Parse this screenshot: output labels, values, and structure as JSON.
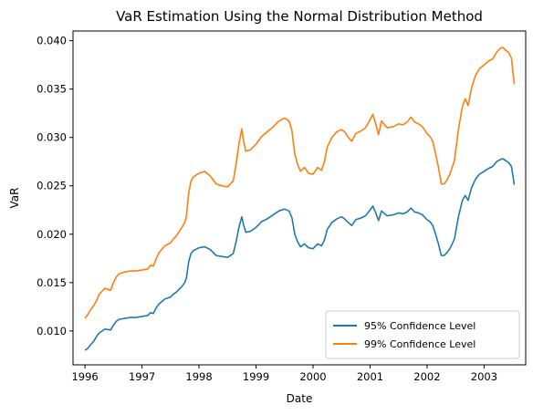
{
  "chart_data": {
    "type": "line",
    "title": "VaR Estimation Using the Normal Distribution Method",
    "xlabel": "Date",
    "ylabel": "VaR",
    "xlim": [
      1995.79,
      2003.73
    ],
    "ylim": [
      0.0065,
      0.041
    ],
    "x_ticks": [
      "1996",
      "1997",
      "1998",
      "1999",
      "2000",
      "2001",
      "2002",
      "2003"
    ],
    "y_ticks": [
      "0.010",
      "0.015",
      "0.020",
      "0.025",
      "0.030",
      "0.035",
      "0.040"
    ],
    "grid": false,
    "legend_position": "lower-right",
    "series": [
      {
        "name": "95% Confidence Level",
        "color": "#1f77b4",
        "points": [
          [
            1996.0,
            0.008
          ],
          [
            1996.05,
            0.0082
          ],
          [
            1996.1,
            0.0086
          ],
          [
            1996.15,
            0.0089
          ],
          [
            1996.2,
            0.0094
          ],
          [
            1996.25,
            0.0098
          ],
          [
            1996.3,
            0.01
          ],
          [
            1996.35,
            0.0102
          ],
          [
            1996.45,
            0.0101
          ],
          [
            1996.5,
            0.0106
          ],
          [
            1996.55,
            0.011
          ],
          [
            1996.6,
            0.0112
          ],
          [
            1996.7,
            0.0113
          ],
          [
            1996.8,
            0.0114
          ],
          [
            1996.9,
            0.0114
          ],
          [
            1997.0,
            0.0115
          ],
          [
            1997.1,
            0.0116
          ],
          [
            1997.15,
            0.0119
          ],
          [
            1997.2,
            0.0118
          ],
          [
            1997.25,
            0.0124
          ],
          [
            1997.3,
            0.0128
          ],
          [
            1997.4,
            0.0133
          ],
          [
            1997.5,
            0.0135
          ],
          [
            1997.55,
            0.0138
          ],
          [
            1997.6,
            0.014
          ],
          [
            1997.7,
            0.0146
          ],
          [
            1997.75,
            0.015
          ],
          [
            1997.78,
            0.0155
          ],
          [
            1997.82,
            0.0172
          ],
          [
            1997.86,
            0.018
          ],
          [
            1997.9,
            0.0183
          ],
          [
            1998.0,
            0.0186
          ],
          [
            1998.1,
            0.0187
          ],
          [
            1998.2,
            0.0184
          ],
          [
            1998.3,
            0.0178
          ],
          [
            1998.4,
            0.0177
          ],
          [
            1998.5,
            0.0176
          ],
          [
            1998.6,
            0.018
          ],
          [
            1998.65,
            0.0192
          ],
          [
            1998.7,
            0.0207
          ],
          [
            1998.75,
            0.0218
          ],
          [
            1998.78,
            0.021
          ],
          [
            1998.82,
            0.0202
          ],
          [
            1998.9,
            0.0203
          ],
          [
            1999.0,
            0.0207
          ],
          [
            1999.1,
            0.0213
          ],
          [
            1999.2,
            0.0216
          ],
          [
            1999.3,
            0.022
          ],
          [
            1999.4,
            0.0224
          ],
          [
            1999.5,
            0.0226
          ],
          [
            1999.58,
            0.0224
          ],
          [
            1999.63,
            0.0217
          ],
          [
            1999.68,
            0.02
          ],
          [
            1999.73,
            0.0192
          ],
          [
            1999.78,
            0.0187
          ],
          [
            1999.85,
            0.019
          ],
          [
            1999.92,
            0.0186
          ],
          [
            2000.0,
            0.0185
          ],
          [
            2000.08,
            0.019
          ],
          [
            2000.15,
            0.0188
          ],
          [
            2000.2,
            0.0194
          ],
          [
            2000.25,
            0.0205
          ],
          [
            2000.33,
            0.0212
          ],
          [
            2000.42,
            0.0216
          ],
          [
            2000.5,
            0.0218
          ],
          [
            2000.55,
            0.0216
          ],
          [
            2000.62,
            0.0212
          ],
          [
            2000.68,
            0.0209
          ],
          [
            2000.75,
            0.0215
          ],
          [
            2000.85,
            0.0217
          ],
          [
            2000.92,
            0.0219
          ],
          [
            2001.0,
            0.0225
          ],
          [
            2001.05,
            0.0229
          ],
          [
            2001.1,
            0.0222
          ],
          [
            2001.15,
            0.0214
          ],
          [
            2001.2,
            0.0224
          ],
          [
            2001.3,
            0.0219
          ],
          [
            2001.4,
            0.022
          ],
          [
            2001.5,
            0.0222
          ],
          [
            2001.58,
            0.0221
          ],
          [
            2001.65,
            0.0223
          ],
          [
            2001.72,
            0.0227
          ],
          [
            2001.78,
            0.0223
          ],
          [
            2001.85,
            0.0222
          ],
          [
            2001.92,
            0.022
          ],
          [
            2002.0,
            0.0215
          ],
          [
            2002.05,
            0.0213
          ],
          [
            2002.1,
            0.0209
          ],
          [
            2002.15,
            0.02
          ],
          [
            2002.2,
            0.019
          ],
          [
            2002.25,
            0.0178
          ],
          [
            2002.3,
            0.0178
          ],
          [
            2002.35,
            0.0181
          ],
          [
            2002.4,
            0.0185
          ],
          [
            2002.48,
            0.0195
          ],
          [
            2002.55,
            0.0218
          ],
          [
            2002.62,
            0.0235
          ],
          [
            2002.67,
            0.024
          ],
          [
            2002.72,
            0.0235
          ],
          [
            2002.78,
            0.0248
          ],
          [
            2002.85,
            0.0257
          ],
          [
            2002.92,
            0.0262
          ],
          [
            2003.0,
            0.0265
          ],
          [
            2003.08,
            0.0268
          ],
          [
            2003.15,
            0.027
          ],
          [
            2003.22,
            0.0275
          ],
          [
            2003.28,
            0.0277
          ],
          [
            2003.33,
            0.0278
          ],
          [
            2003.38,
            0.0276
          ],
          [
            2003.43,
            0.0274
          ],
          [
            2003.48,
            0.027
          ],
          [
            2003.53,
            0.0251
          ]
        ]
      },
      {
        "name": "99% Confidence Level",
        "color": "#ff7f0e",
        "points": [
          [
            1996.0,
            0.0113
          ],
          [
            1996.05,
            0.0117
          ],
          [
            1996.1,
            0.0122
          ],
          [
            1996.15,
            0.0126
          ],
          [
            1996.2,
            0.0131
          ],
          [
            1996.25,
            0.0138
          ],
          [
            1996.3,
            0.0141
          ],
          [
            1996.35,
            0.0144
          ],
          [
            1996.45,
            0.0142
          ],
          [
            1996.5,
            0.015
          ],
          [
            1996.55,
            0.0156
          ],
          [
            1996.6,
            0.0159
          ],
          [
            1996.7,
            0.0161
          ],
          [
            1996.8,
            0.0162
          ],
          [
            1996.9,
            0.0162
          ],
          [
            1997.0,
            0.0163
          ],
          [
            1997.1,
            0.0164
          ],
          [
            1997.15,
            0.0168
          ],
          [
            1997.2,
            0.0167
          ],
          [
            1997.25,
            0.0175
          ],
          [
            1997.3,
            0.0181
          ],
          [
            1997.4,
            0.0188
          ],
          [
            1997.5,
            0.0191
          ],
          [
            1997.55,
            0.0195
          ],
          [
            1997.6,
            0.0198
          ],
          [
            1997.7,
            0.0207
          ],
          [
            1997.75,
            0.0212
          ],
          [
            1997.78,
            0.0219
          ],
          [
            1997.82,
            0.0243
          ],
          [
            1997.86,
            0.0255
          ],
          [
            1997.9,
            0.0259
          ],
          [
            1998.0,
            0.0263
          ],
          [
            1998.1,
            0.0265
          ],
          [
            1998.2,
            0.026
          ],
          [
            1998.3,
            0.0252
          ],
          [
            1998.4,
            0.025
          ],
          [
            1998.5,
            0.0249
          ],
          [
            1998.6,
            0.0255
          ],
          [
            1998.65,
            0.0272
          ],
          [
            1998.7,
            0.0293
          ],
          [
            1998.75,
            0.0309
          ],
          [
            1998.78,
            0.0297
          ],
          [
            1998.82,
            0.0286
          ],
          [
            1998.9,
            0.0287
          ],
          [
            1999.0,
            0.0293
          ],
          [
            1999.1,
            0.0301
          ],
          [
            1999.2,
            0.0306
          ],
          [
            1999.3,
            0.0311
          ],
          [
            1999.4,
            0.0317
          ],
          [
            1999.5,
            0.032
          ],
          [
            1999.58,
            0.0317
          ],
          [
            1999.63,
            0.0307
          ],
          [
            1999.68,
            0.0283
          ],
          [
            1999.73,
            0.0272
          ],
          [
            1999.78,
            0.0265
          ],
          [
            1999.85,
            0.0269
          ],
          [
            1999.92,
            0.0263
          ],
          [
            2000.0,
            0.0262
          ],
          [
            2000.08,
            0.0269
          ],
          [
            2000.15,
            0.0266
          ],
          [
            2000.2,
            0.0275
          ],
          [
            2000.25,
            0.029
          ],
          [
            2000.33,
            0.03
          ],
          [
            2000.42,
            0.0306
          ],
          [
            2000.5,
            0.0308
          ],
          [
            2000.55,
            0.0306
          ],
          [
            2000.62,
            0.03
          ],
          [
            2000.68,
            0.0296
          ],
          [
            2000.75,
            0.0304
          ],
          [
            2000.85,
            0.0307
          ],
          [
            2000.92,
            0.031
          ],
          [
            2001.0,
            0.0318
          ],
          [
            2001.05,
            0.0324
          ],
          [
            2001.1,
            0.0314
          ],
          [
            2001.15,
            0.0303
          ],
          [
            2001.2,
            0.0317
          ],
          [
            2001.3,
            0.031
          ],
          [
            2001.4,
            0.0311
          ],
          [
            2001.5,
            0.0314
          ],
          [
            2001.58,
            0.0313
          ],
          [
            2001.65,
            0.0316
          ],
          [
            2001.72,
            0.0321
          ],
          [
            2001.78,
            0.0316
          ],
          [
            2001.85,
            0.0314
          ],
          [
            2001.92,
            0.0311
          ],
          [
            2002.0,
            0.0304
          ],
          [
            2002.05,
            0.0301
          ],
          [
            2002.1,
            0.0296
          ],
          [
            2002.15,
            0.0283
          ],
          [
            2002.2,
            0.0269
          ],
          [
            2002.25,
            0.0252
          ],
          [
            2002.3,
            0.0252
          ],
          [
            2002.35,
            0.0256
          ],
          [
            2002.4,
            0.0262
          ],
          [
            2002.48,
            0.0276
          ],
          [
            2002.55,
            0.0308
          ],
          [
            2002.62,
            0.0332
          ],
          [
            2002.67,
            0.034
          ],
          [
            2002.72,
            0.0333
          ],
          [
            2002.78,
            0.0351
          ],
          [
            2002.85,
            0.0364
          ],
          [
            2002.92,
            0.0371
          ],
          [
            2003.0,
            0.0375
          ],
          [
            2003.08,
            0.0379
          ],
          [
            2003.15,
            0.0381
          ],
          [
            2003.22,
            0.0388
          ],
          [
            2003.28,
            0.0392
          ],
          [
            2003.33,
            0.0393
          ],
          [
            2003.38,
            0.039
          ],
          [
            2003.43,
            0.0388
          ],
          [
            2003.48,
            0.0382
          ],
          [
            2003.53,
            0.0355
          ]
        ]
      }
    ]
  }
}
